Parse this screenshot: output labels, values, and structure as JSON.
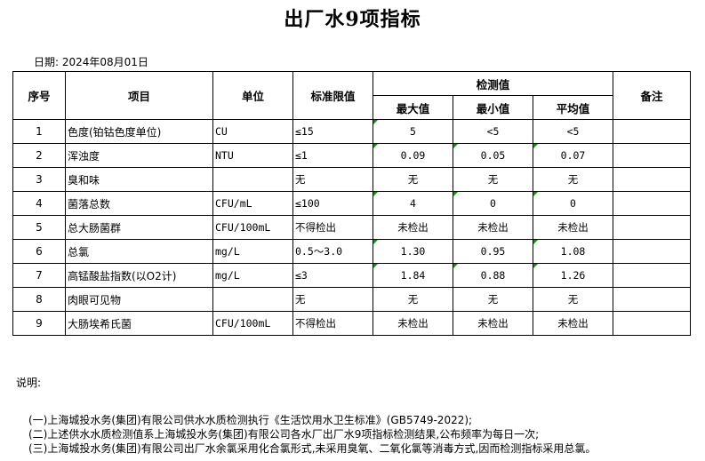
{
  "title": "出厂水9项指标",
  "date": "日期: 2024年08月01日",
  "headers": {
    "seq": "序号",
    "item": "项目",
    "unit": "单位",
    "limit": "标准限值",
    "measured": "检测值",
    "max": "最大值",
    "min": "最小值",
    "avg": "平均值",
    "remark": "备注"
  },
  "rows": [
    {
      "seq": "1",
      "item": "色度(铂钴色度单位)",
      "unit": "CU",
      "limit": "≤15",
      "max": "5",
      "min": "<5",
      "avg": "<5",
      "flags": [
        1,
        0,
        0
      ]
    },
    {
      "seq": "2",
      "item": "浑浊度",
      "unit": "NTU",
      "limit": "≤1",
      "max": "0.09",
      "min": "0.05",
      "avg": "0.07",
      "flags": [
        1,
        1,
        1
      ]
    },
    {
      "seq": "3",
      "item": "臭和味",
      "unit": "",
      "limit": "无",
      "max": "无",
      "min": "无",
      "avg": "无",
      "flags": [
        0,
        0,
        0
      ]
    },
    {
      "seq": "4",
      "item": "菌落总数",
      "unit": "CFU/mL",
      "limit": "≤100",
      "max": "4",
      "min": "0",
      "avg": "0",
      "flags": [
        1,
        1,
        1
      ]
    },
    {
      "seq": "5",
      "item": "总大肠菌群",
      "unit": "CFU/100mL",
      "limit": "不得检出",
      "max": "未检出",
      "min": "未检出",
      "avg": "未检出",
      "flags": [
        0,
        0,
        0
      ]
    },
    {
      "seq": "6",
      "item": "总氯",
      "unit": "mg/L",
      "limit": "0.5～3.0",
      "max": "1.30",
      "min": "0.95",
      "avg": "1.08",
      "flags": [
        1,
        0,
        1
      ]
    },
    {
      "seq": "7",
      "item": "高锰酸盐指数(以O2计)",
      "unit": "mg/L",
      "limit": "≤3",
      "max": "1.84",
      "min": "0.88",
      "avg": "1.26",
      "flags": [
        1,
        1,
        1
      ]
    },
    {
      "seq": "8",
      "item": "肉眼可见物",
      "unit": "",
      "limit": "无",
      "max": "无",
      "min": "无",
      "avg": "无",
      "flags": [
        0,
        0,
        0
      ]
    },
    {
      "seq": "9",
      "item": "大肠埃希氏菌",
      "unit": "CFU/100mL",
      "limit": "不得检出",
      "max": "未检出",
      "min": "未检出",
      "avg": "未检出",
      "flags": [
        0,
        0,
        0
      ]
    }
  ],
  "notes": {
    "heading": "说明:",
    "lines": [
      "(一)上海城投水务(集团)有限公司供水水质检测执行《生活饮用水卫生标准》(GB5749-2022);",
      "(二)上述供水水质检测值系上海城投水务(集团)有限公司各水厂出厂水9项指标检测结果,公布频率为每日一次;",
      "(三)上海城投水务(集团)有限公司出厂水余氯采用化合氯形式,未采用臭氧、二氧化氯等消毒方式,因而检测指标采用总氯。"
    ]
  },
  "indicator_color": "#1a8a1a"
}
